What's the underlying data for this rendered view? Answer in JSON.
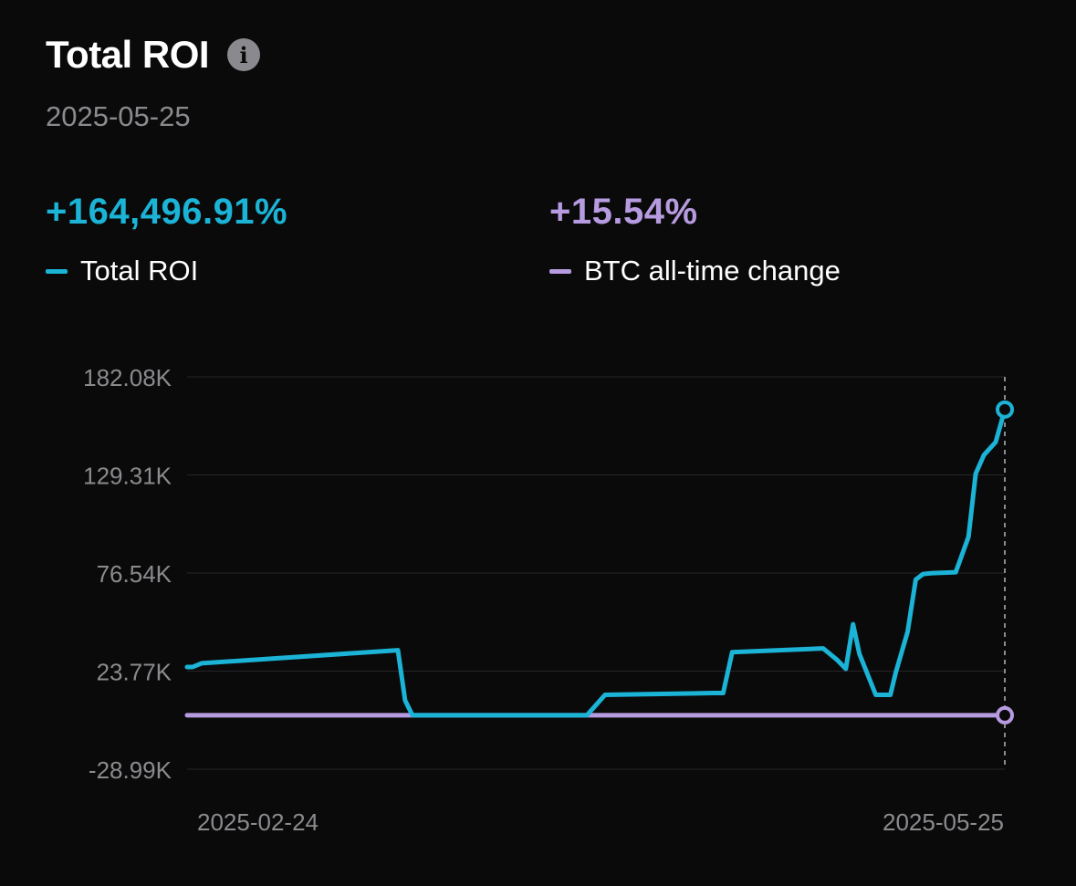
{
  "header": {
    "title": "Total ROI",
    "date": "2025-05-25"
  },
  "stats": {
    "roi": {
      "value": "+164,496.91%",
      "label": "Total ROI",
      "color": "#1bb3d6"
    },
    "btc": {
      "value": "+15.54%",
      "label": "BTC all-time change",
      "color": "#b79be0"
    }
  },
  "icons": {
    "info": "info-icon"
  },
  "chart_data": {
    "type": "line",
    "title": "Total ROI",
    "xlabel": "",
    "ylabel": "",
    "y_tick_labels": [
      "182.08K",
      "129.31K",
      "76.54K",
      "23.77K",
      "-28.99K"
    ],
    "y_ticks": [
      182080,
      129310,
      76540,
      23770,
      -28990
    ],
    "ylim": [
      -28990,
      182080
    ],
    "x_tick_labels": [
      "2025-02-24",
      "2025-05-25"
    ],
    "xlim": [
      0,
      90
    ],
    "grid": true,
    "series": [
      {
        "name": "Total ROI",
        "color": "#1bb3d6",
        "x": [
          0,
          0.6,
          1.6,
          23.2,
          24.0,
          24.8,
          26.0,
          44.0,
          46.0,
          58.0,
          59.0,
          60.0,
          70.0,
          71.5,
          72.5,
          73.3,
          74.0,
          75.8,
          77.4,
          78.0,
          79.3,
          80.2,
          81.0,
          82.0,
          83.7,
          84.6,
          86.0,
          86.8,
          87.7,
          89.0,
          90.0
        ],
        "y": [
          26000,
          26000,
          28000,
          35000,
          8000,
          0,
          0,
          0,
          11000,
          12000,
          12000,
          34000,
          36000,
          30000,
          25000,
          49000,
          33000,
          11000,
          11000,
          23000,
          45000,
          73000,
          76000,
          76500,
          76800,
          77000,
          96000,
          130000,
          140000,
          147000,
          164500
        ]
      },
      {
        "name": "BTC all-time change",
        "color": "#b79be0",
        "x": [
          0,
          90
        ],
        "y": [
          15.54,
          15.54
        ]
      }
    ]
  }
}
